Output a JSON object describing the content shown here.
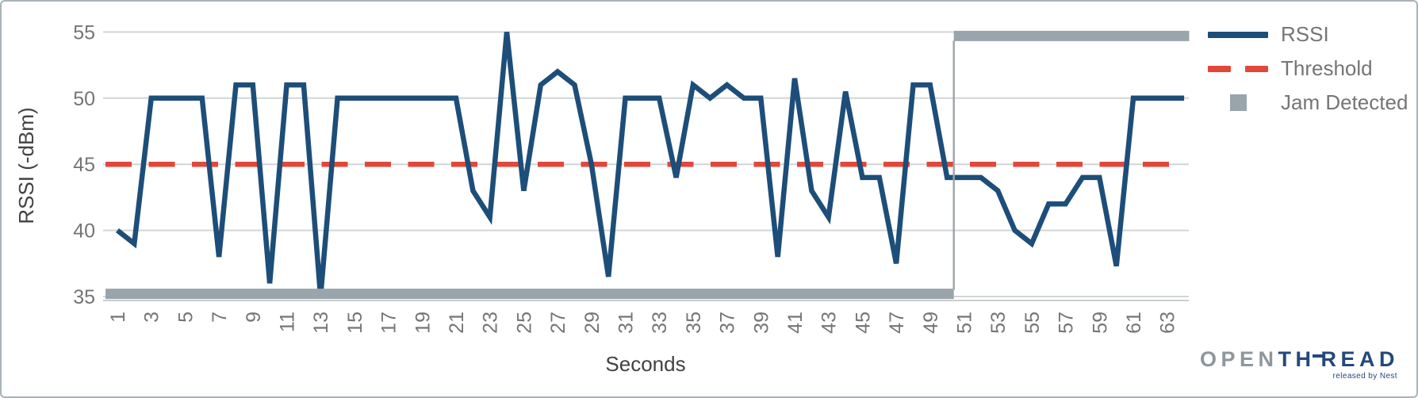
{
  "chart_data": {
    "type": "line",
    "title": "",
    "xlabel": "Seconds",
    "ylabel": "RSSI (-dBm)",
    "grid": true,
    "legend_position": "right-top",
    "ylim": [
      35,
      55
    ],
    "xlim": [
      0.5,
      64.5
    ],
    "y_ticks": [
      55,
      50,
      45,
      40,
      35
    ],
    "x_tick_labels": [
      "1",
      "3",
      "5",
      "7",
      "9",
      "11",
      "13",
      "15",
      "17",
      "19",
      "21",
      "23",
      "25",
      "27",
      "29",
      "31",
      "33",
      "35",
      "37",
      "39",
      "41",
      "43",
      "45",
      "47",
      "49",
      "51",
      "53",
      "55",
      "57",
      "59",
      "61",
      "63"
    ],
    "x_start": 1,
    "x_step": 1,
    "series": [
      {
        "name": "RSSI",
        "type": "line",
        "color": "#1d4e79",
        "values": [
          40,
          39,
          50,
          50,
          50,
          50,
          38,
          51,
          51,
          36,
          51,
          51,
          35,
          50,
          50,
          50,
          50,
          50,
          50,
          50,
          50,
          43,
          41,
          55,
          43,
          51,
          52,
          51,
          45,
          36.5,
          50,
          50,
          50,
          44,
          51,
          50,
          51,
          50,
          50,
          38,
          51.5,
          43,
          41,
          50.5,
          44,
          44,
          37.5,
          51,
          51,
          44,
          44,
          44,
          43,
          40,
          39,
          42,
          42,
          44,
          44,
          37.3,
          50,
          50,
          50,
          50
        ]
      },
      {
        "name": "Threshold",
        "type": "dashed-horizontal-line",
        "color": "#e0483b",
        "value": 45
      },
      {
        "name": "Jam Detected",
        "type": "step-indicator",
        "color": "#9aa4ab",
        "low_level": 35.2,
        "high_level": 54.7,
        "x_start": 0.3,
        "transition_x": 50.4,
        "x_end": 64.3,
        "description": "not detected for seconds 1-50, detected for seconds 51-64"
      }
    ],
    "legend": [
      {
        "label": "RSSI"
      },
      {
        "label": "Threshold"
      },
      {
        "label": "Jam Detected"
      }
    ]
  },
  "logo": {
    "open": "OPEN",
    "thread_a": "TH",
    "thread_b": "READ",
    "tagline": "released by Nest"
  },
  "colors": {
    "rssi": "#1d4e79",
    "threshold": "#e0483b",
    "jam": "#9aa4ab",
    "grid": "#d2d5d6",
    "axis_line": "#c9cdce",
    "tick_text": "#757575",
    "title_text": "#424242",
    "border": "#a9b3b8",
    "logo_gray": "#8d979c",
    "logo_navy": "#24497b"
  }
}
